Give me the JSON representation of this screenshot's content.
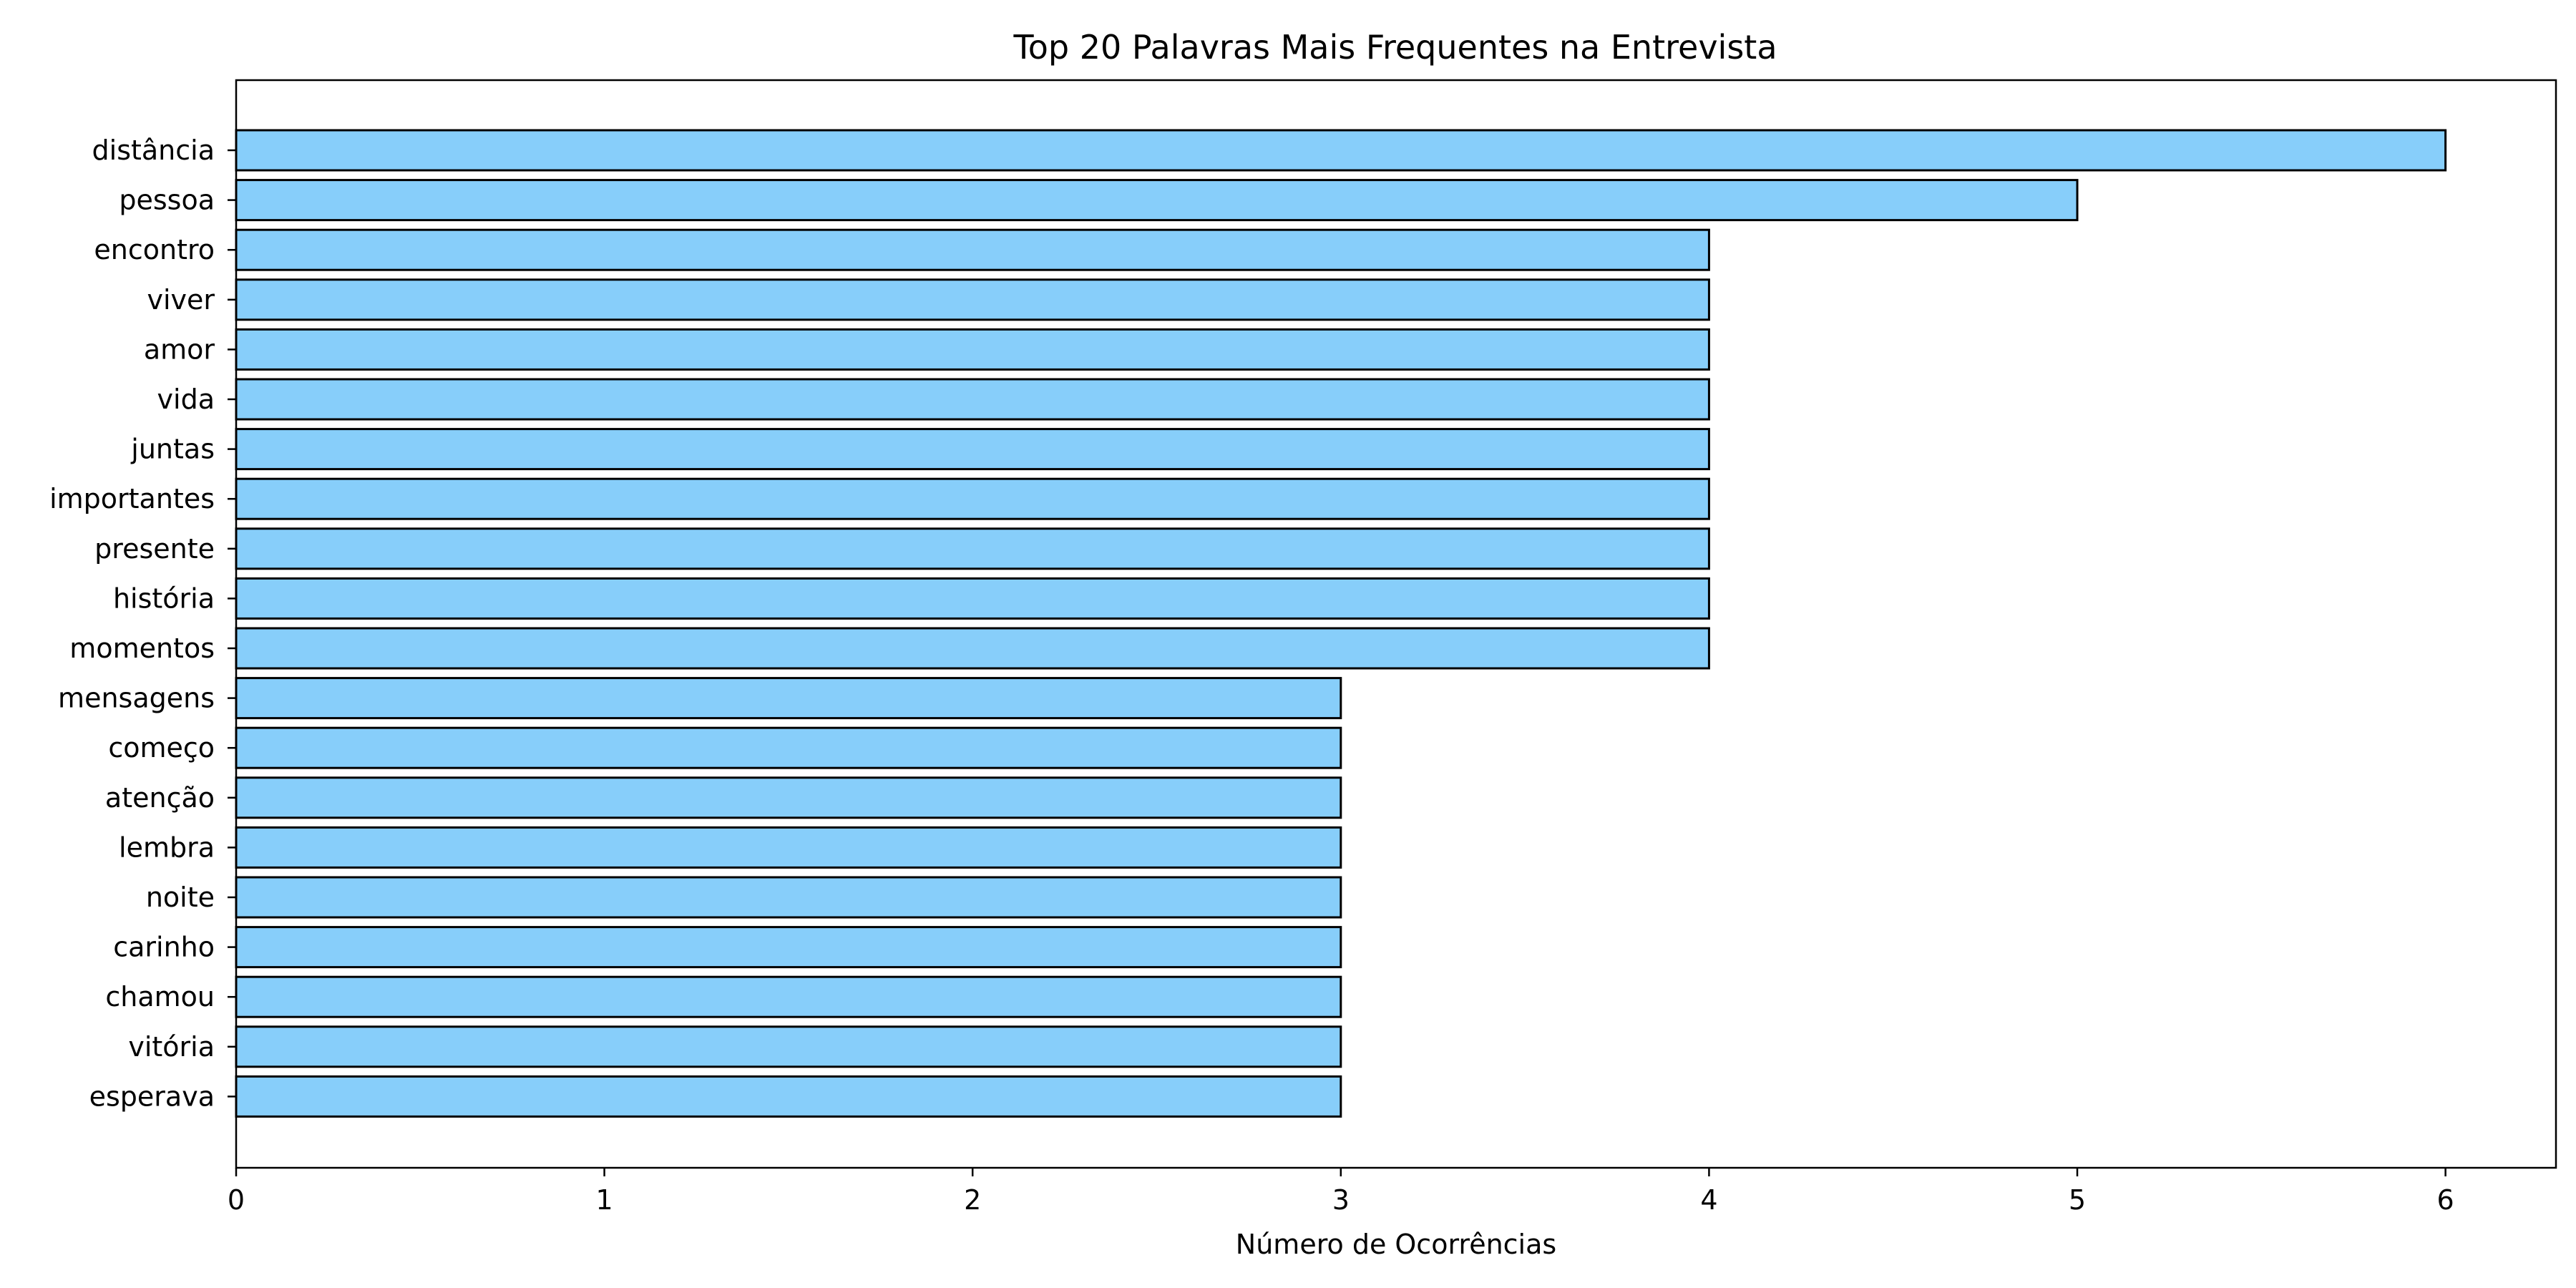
{
  "chart_data": {
    "type": "bar",
    "orientation": "horizontal",
    "title": "Top 20 Palavras Mais Frequentes na Entrevista",
    "xlabel": "Número de Ocorrências",
    "ylabel": "",
    "xlim": [
      0,
      6.3
    ],
    "xticks": [
      "0",
      "1",
      "2",
      "3",
      "4",
      "5",
      "6"
    ],
    "grid": false,
    "bar_color": "#87CEFA",
    "edge_color": "#000000",
    "categories": [
      "distância",
      "pessoa",
      "encontro",
      "viver",
      "amor",
      "vida",
      "juntas",
      "importantes",
      "presente",
      "história",
      "momentos",
      "mensagens",
      "começo",
      "atenção",
      "lembra",
      "noite",
      "carinho",
      "chamou",
      "vitória",
      "esperava"
    ],
    "values": [
      6,
      5,
      4,
      4,
      4,
      4,
      4,
      4,
      4,
      4,
      4,
      3,
      3,
      3,
      3,
      3,
      3,
      3,
      3,
      3
    ]
  }
}
